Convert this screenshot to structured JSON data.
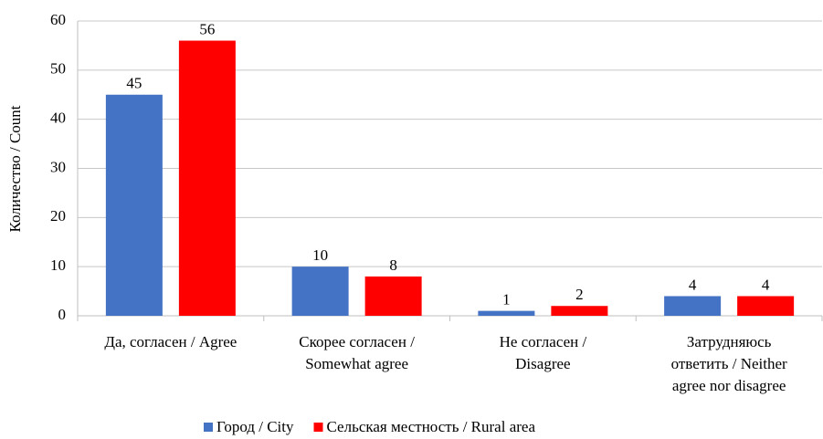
{
  "chart_data": {
    "type": "bar",
    "y_label": "Количество / Count",
    "categories": [
      [
        "Да, согласен / Agree"
      ],
      [
        "Скорее согласен /",
        "Somewhat agree"
      ],
      [
        "Не согласен /",
        "Disagree"
      ],
      [
        "Затрудняюсь",
        "ответить / Neither",
        "agree nor disagree"
      ]
    ],
    "series": [
      {
        "name": "Город / City",
        "color": "#4472c4",
        "values": [
          45,
          10,
          1,
          4
        ]
      },
      {
        "name": "Сельская местность / Rural area",
        "color": "#ff0000",
        "values": [
          56,
          8,
          2,
          4
        ]
      }
    ],
    "ylim": [
      0,
      60
    ],
    "yticks": [
      0,
      10,
      20,
      30,
      40,
      50,
      60
    ],
    "grid": true,
    "legend": "bottom"
  }
}
